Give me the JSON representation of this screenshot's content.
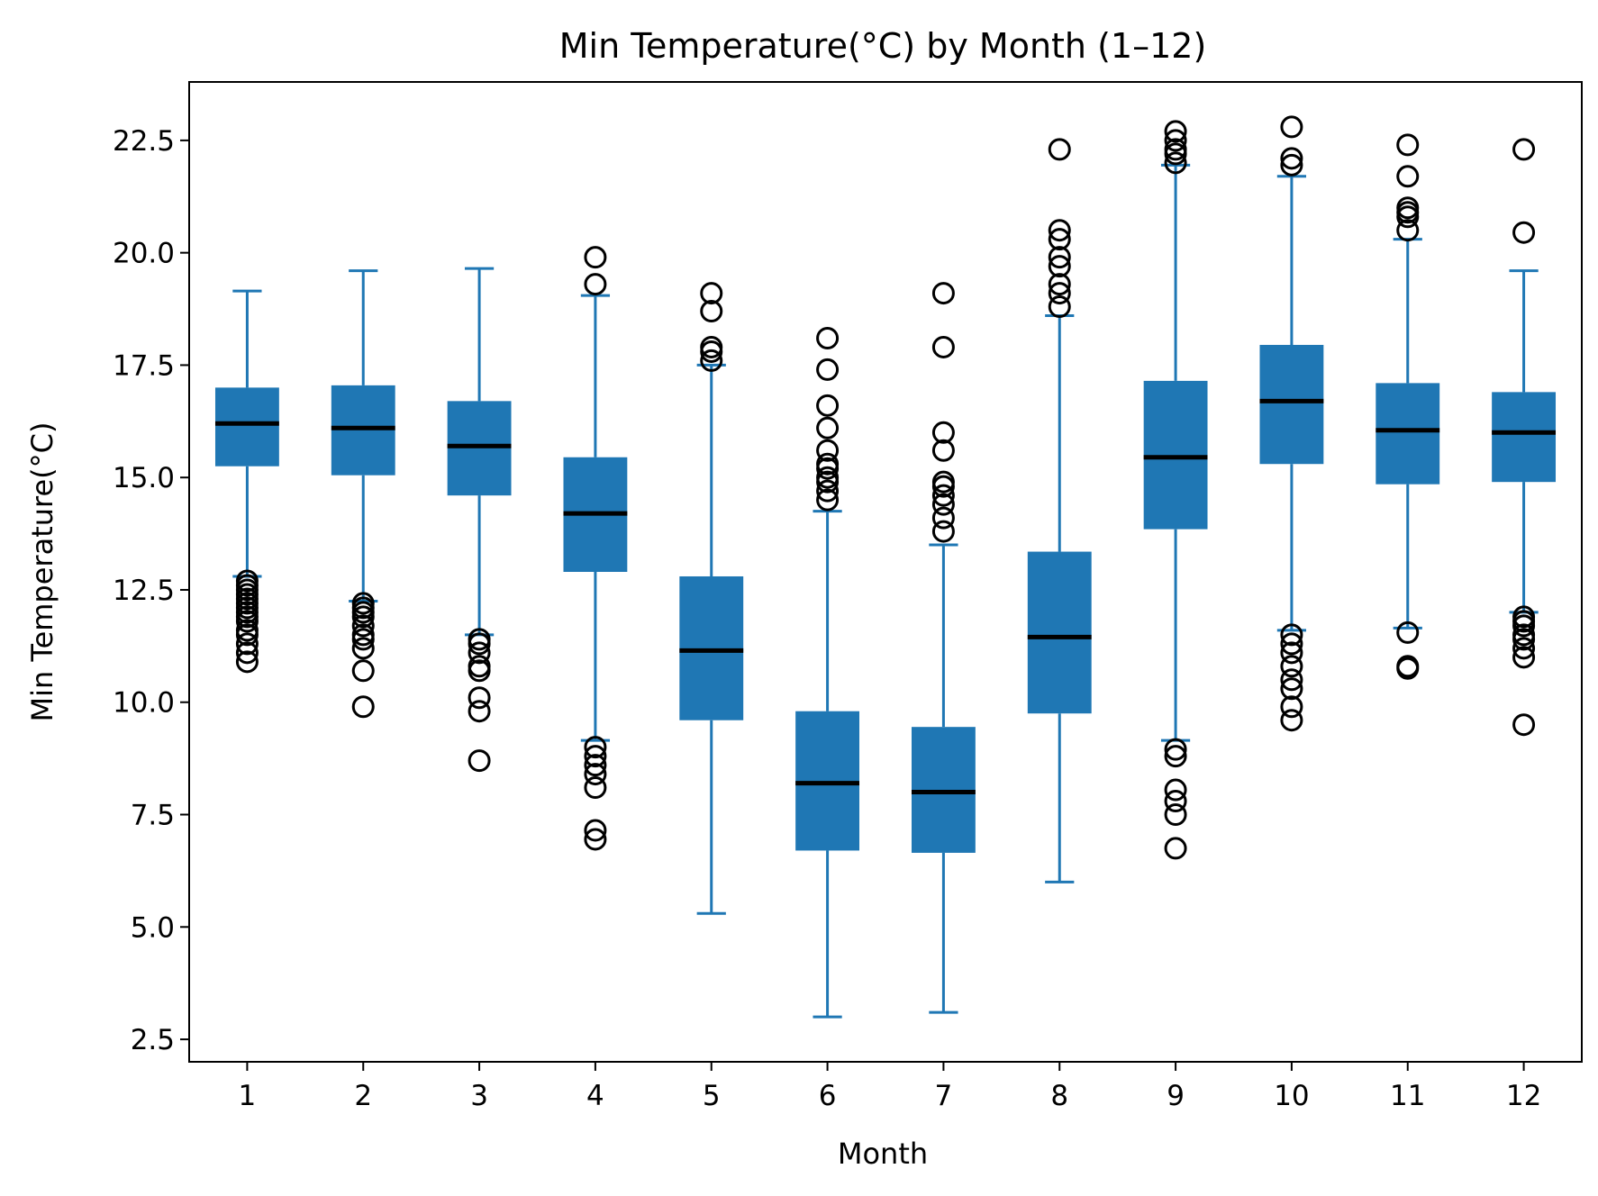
{
  "chart_data": {
    "type": "box",
    "title": "Min Temperature(°C) by Month (1–12)",
    "xlabel": "Month",
    "ylabel": "Min Temperature(°C)",
    "ylim": [
      2.0,
      23.8
    ],
    "yticks": [
      "2.5",
      "5.0",
      "7.5",
      "10.0",
      "12.5",
      "15.0",
      "17.5",
      "20.0",
      "22.5"
    ],
    "categories": [
      "1",
      "2",
      "3",
      "4",
      "5",
      "6",
      "7",
      "8",
      "9",
      "10",
      "11",
      "12"
    ],
    "grid": false,
    "colors": {
      "box": "#1f77b4",
      "median": "#000000",
      "outlier": "#000000"
    },
    "boxes": [
      {
        "month": "1",
        "whisker_low": 12.8,
        "q1": 15.25,
        "median": 16.2,
        "q3": 17.0,
        "whisker_high": 19.15,
        "outliers": [
          10.9,
          11.1,
          11.3,
          11.5,
          11.6,
          11.8,
          11.9,
          12.0,
          12.1,
          12.2,
          12.3,
          12.4,
          12.5,
          12.6,
          12.7
        ]
      },
      {
        "month": "2",
        "whisker_low": 12.25,
        "q1": 15.05,
        "median": 16.1,
        "q3": 17.05,
        "whisker_high": 19.6,
        "outliers": [
          9.9,
          10.7,
          11.2,
          11.4,
          11.5,
          11.7,
          11.9,
          12.0,
          12.1,
          12.2
        ]
      },
      {
        "month": "3",
        "whisker_low": 11.5,
        "q1": 14.6,
        "median": 15.7,
        "q3": 16.7,
        "whisker_high": 19.65,
        "outliers": [
          8.7,
          9.8,
          10.1,
          10.7,
          10.8,
          11.1,
          11.3,
          11.4
        ]
      },
      {
        "month": "4",
        "whisker_low": 9.15,
        "q1": 12.9,
        "median": 14.2,
        "q3": 15.45,
        "whisker_high": 19.05,
        "outliers": [
          6.95,
          7.15,
          8.1,
          8.4,
          8.6,
          8.8,
          9.0,
          19.3,
          19.9
        ]
      },
      {
        "month": "5",
        "whisker_low": 5.3,
        "q1": 9.6,
        "median": 11.15,
        "q3": 12.8,
        "whisker_high": 17.5,
        "outliers": [
          17.6,
          17.8,
          17.9,
          18.7,
          19.1
        ]
      },
      {
        "month": "6",
        "whisker_low": 3.0,
        "q1": 6.7,
        "median": 8.2,
        "q3": 9.8,
        "whisker_high": 14.25,
        "outliers": [
          14.5,
          14.7,
          14.9,
          15.0,
          15.2,
          15.3,
          15.6,
          16.1,
          16.6,
          17.4,
          18.1
        ]
      },
      {
        "month": "7",
        "whisker_low": 3.1,
        "q1": 6.65,
        "median": 8.0,
        "q3": 9.45,
        "whisker_high": 13.5,
        "outliers": [
          13.8,
          14.1,
          14.4,
          14.6,
          14.8,
          14.9,
          15.6,
          16.0,
          17.9,
          19.1
        ]
      },
      {
        "month": "8",
        "whisker_low": 6.0,
        "q1": 9.75,
        "median": 11.45,
        "q3": 13.35,
        "whisker_high": 18.6,
        "outliers": [
          18.8,
          19.1,
          19.3,
          19.7,
          19.9,
          20.3,
          20.5,
          22.3
        ]
      },
      {
        "month": "9",
        "whisker_low": 9.15,
        "q1": 13.85,
        "median": 15.45,
        "q3": 17.15,
        "whisker_high": 21.95,
        "outliers": [
          6.75,
          7.5,
          7.8,
          8.05,
          8.8,
          8.95,
          22.0,
          22.2,
          22.3,
          22.5,
          22.7
        ]
      },
      {
        "month": "10",
        "whisker_low": 11.6,
        "q1": 15.3,
        "median": 16.7,
        "q3": 17.95,
        "whisker_high": 21.7,
        "outliers": [
          9.6,
          9.9,
          10.3,
          10.5,
          10.8,
          11.1,
          11.3,
          11.5,
          21.95,
          22.1,
          22.8
        ]
      },
      {
        "month": "11",
        "whisker_low": 11.65,
        "q1": 14.85,
        "median": 16.05,
        "q3": 17.1,
        "whisker_high": 20.3,
        "outliers": [
          10.75,
          10.8,
          11.55,
          20.5,
          20.8,
          20.9,
          21.0,
          21.7,
          22.4
        ]
      },
      {
        "month": "12",
        "whisker_low": 12.0,
        "q1": 14.9,
        "median": 16.0,
        "q3": 16.9,
        "whisker_high": 19.6,
        "outliers": [
          9.5,
          11.0,
          11.2,
          11.4,
          11.5,
          11.7,
          11.8,
          11.9,
          20.45,
          22.3
        ]
      }
    ]
  }
}
